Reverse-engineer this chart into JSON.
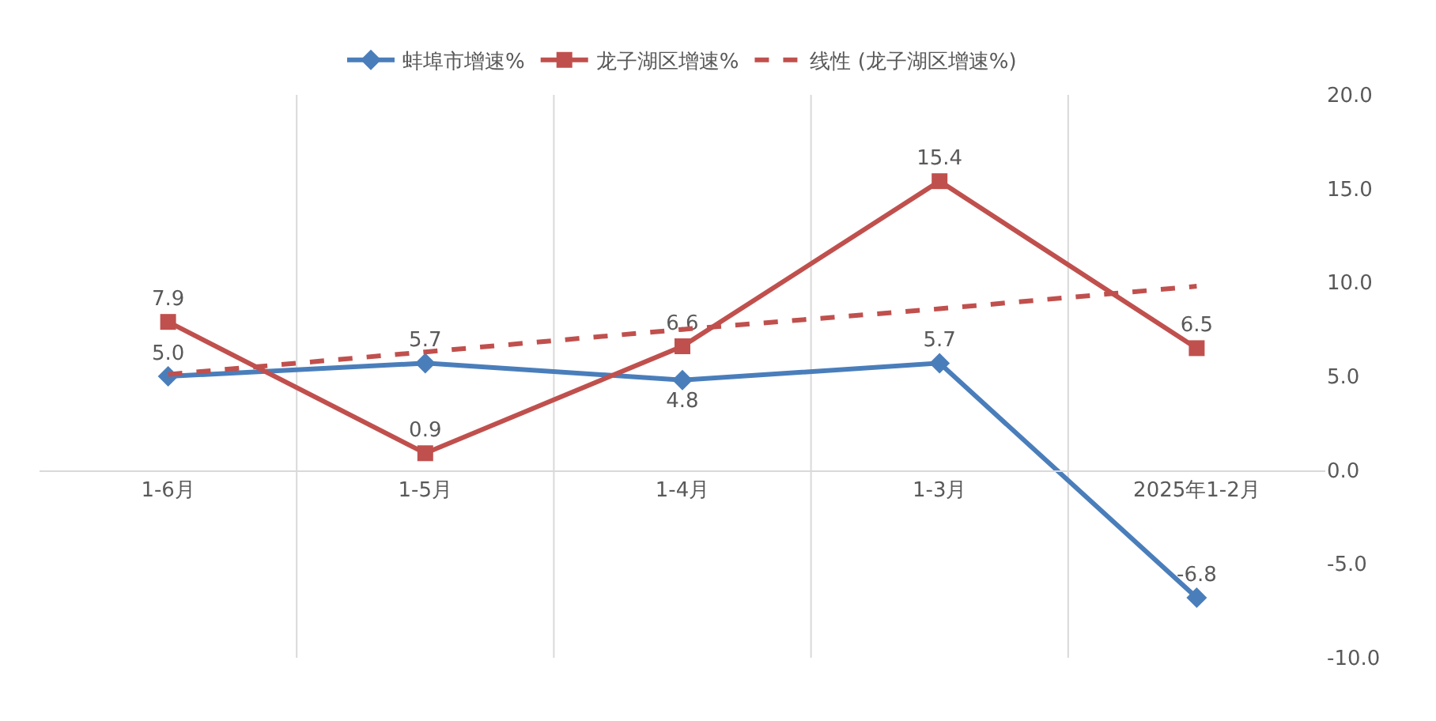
{
  "chart_data": {
    "type": "line",
    "categories": [
      "1-6月",
      "1-5月",
      "1-4月",
      "1-3月",
      "2025年1-2月"
    ],
    "series": [
      {
        "name": "蚌埠市增速%",
        "color": "#4a7ebb",
        "marker": "diamond",
        "values": [
          5.0,
          5.7,
          4.8,
          5.7,
          -6.8
        ],
        "value_labels": [
          "5.0",
          "5.7",
          "4.8",
          "5.7",
          "-6.8"
        ]
      },
      {
        "name": "龙子湖区增速%",
        "color": "#c0504d",
        "marker": "square",
        "values": [
          7.9,
          0.9,
          6.6,
          15.4,
          6.5
        ],
        "value_labels": [
          "7.9",
          "0.9",
          "6.6",
          "15.4",
          "6.5"
        ]
      },
      {
        "name": "线性 (龙子湖区增速%)",
        "color": "#c0504d",
        "marker": "none",
        "line_style": "dashed",
        "values": [
          5.1,
          6.3,
          7.5,
          8.6,
          9.8
        ]
      }
    ],
    "ylim": [
      -10,
      20
    ],
    "yticks": [
      {
        "value": -10,
        "label": "-10.0"
      },
      {
        "value": -5,
        "label": "-5.0"
      },
      {
        "value": 0,
        "label": "0.0"
      },
      {
        "value": 5,
        "label": "5.0"
      },
      {
        "value": 10,
        "label": "10.0"
      },
      {
        "value": 15,
        "label": "15.0"
      },
      {
        "value": 20,
        "label": "20.0"
      }
    ],
    "grid": "x",
    "legend": "top"
  }
}
